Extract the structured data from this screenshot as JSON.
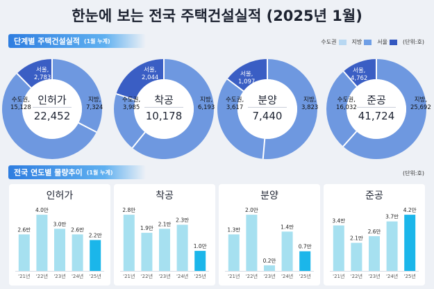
{
  "page_title": "한눈에 보는 전국 주택건설실적 (2025년 1월)",
  "section1": {
    "title": "단계별 주택건설실적",
    "note": "(1월 누계)"
  },
  "section2": {
    "title": "전국 연도별 물량추이",
    "note": "(1월 누계)",
    "unit": "(단위:호)"
  },
  "legend": {
    "items": [
      {
        "label": "수도권",
        "color": "#b8d8f2"
      },
      {
        "label": "지방",
        "color": "#6f9fe6"
      },
      {
        "label": "서울",
        "color": "#3458c0"
      }
    ],
    "unit": "(단위:호)"
  },
  "colors": {
    "capital": "#6e98e0",
    "local": "#6e98e0",
    "seoul": "#3a5ec4",
    "bar": "#a6e0f0",
    "bar_latest": "#1bb6ea"
  },
  "chart_data": [
    {
      "type": "pie",
      "title": "인허가",
      "total": "22,452",
      "slices": [
        {
          "name": "수도권",
          "label": "수도권,",
          "value": 15128,
          "display": "15,128"
        },
        {
          "name": "지방",
          "label": "지방,",
          "value": 7324,
          "display": "7,324"
        }
      ],
      "sub_slice": {
        "name": "서울",
        "label": "서울,",
        "value": 2783,
        "display": "2,783",
        "part_of": "수도권"
      }
    },
    {
      "type": "pie",
      "title": "착공",
      "total": "10,178",
      "slices": [
        {
          "name": "수도권",
          "label": "수도권,",
          "value": 3985,
          "display": "3,985"
        },
        {
          "name": "지방",
          "label": "지방,",
          "value": 6193,
          "display": "6,193"
        }
      ],
      "sub_slice": {
        "name": "서울",
        "label": "서울,",
        "value": 2044,
        "display": "2,044",
        "part_of": "수도권"
      }
    },
    {
      "type": "pie",
      "title": "분양",
      "total": "7,440",
      "slices": [
        {
          "name": "수도권",
          "label": "수도권,",
          "value": 3617,
          "display": "3,617"
        },
        {
          "name": "지방",
          "label": "지방,",
          "value": 3823,
          "display": "3,823"
        }
      ],
      "sub_slice": {
        "name": "서울",
        "label": "서울,",
        "value": 1097,
        "display": "1,097",
        "part_of": "수도권"
      }
    },
    {
      "type": "pie",
      "title": "준공",
      "total": "41,724",
      "slices": [
        {
          "name": "수도권",
          "label": "수도권,",
          "value": 16032,
          "display": "16,032"
        },
        {
          "name": "지방",
          "label": "지방,",
          "value": 25692,
          "display": "25,692"
        }
      ],
      "sub_slice": {
        "name": "서울",
        "label": "서울,",
        "value": 4762,
        "display": "4,762",
        "part_of": "수도권"
      }
    },
    {
      "type": "bar",
      "title": "인허가",
      "categories": [
        "'21년",
        "'22년",
        "'23년",
        "'24년",
        "'25년"
      ],
      "values": [
        2.6,
        4.0,
        3.0,
        2.6,
        2.2
      ],
      "value_labels": [
        "2.6만",
        "4.0만",
        "3.0만",
        "2.6만",
        "2.2만"
      ],
      "ylim": [
        0,
        4.4
      ]
    },
    {
      "type": "bar",
      "title": "착공",
      "categories": [
        "'21년",
        "'22년",
        "'23년",
        "'24년",
        "'25년"
      ],
      "values": [
        2.8,
        1.9,
        2.1,
        2.3,
        1.0
      ],
      "value_labels": [
        "2.8만",
        "1.9만",
        "2.1만",
        "2.3만",
        "1.0만"
      ],
      "ylim": [
        0,
        3.08
      ]
    },
    {
      "type": "bar",
      "title": "분양",
      "categories": [
        "'21년",
        "'22년",
        "'23년",
        "'24년",
        "'25년"
      ],
      "values": [
        1.3,
        2.0,
        0.2,
        1.4,
        0.7
      ],
      "value_labels": [
        "1.3만",
        "2.0만",
        "0.2만",
        "1.4만",
        "0.7만"
      ],
      "ylim": [
        0,
        2.2
      ]
    },
    {
      "type": "bar",
      "title": "준공",
      "categories": [
        "'21년",
        "'22년",
        "'23년",
        "'24년",
        "'25년"
      ],
      "values": [
        3.4,
        2.1,
        2.6,
        3.7,
        4.2
      ],
      "value_labels": [
        "3.4만",
        "2.1만",
        "2.6만",
        "3.7만",
        "4.2만"
      ],
      "ylim": [
        0,
        4.62
      ]
    }
  ]
}
